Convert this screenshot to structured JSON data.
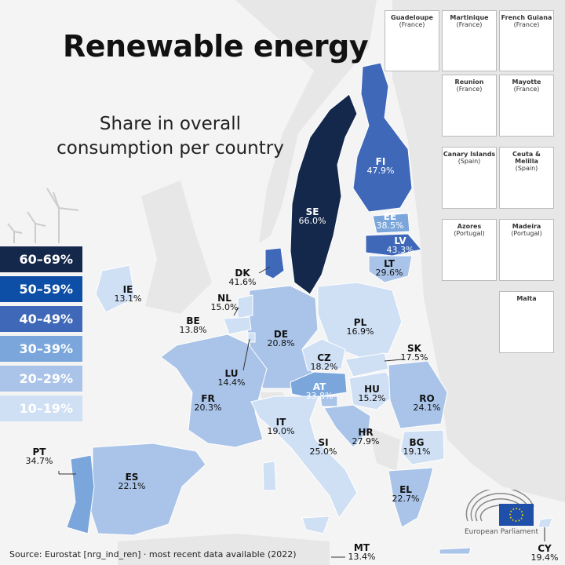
{
  "title": "Renewable energy",
  "subtitle": "Share in overall consumption per country",
  "legend": [
    {
      "label": "60–69%",
      "color": "#14284b"
    },
    {
      "label": "50–59%",
      "color": "#0d4ea6"
    },
    {
      "label": "40–49%",
      "color": "#3f68b8"
    },
    {
      "label": "30–39%",
      "color": "#7aa6dc"
    },
    {
      "label": "20–29%",
      "color": "#a9c4e8"
    },
    {
      "label": "10–19%",
      "color": "#cfdff4"
    }
  ],
  "countries": {
    "SE": {
      "code": "SE",
      "value": "66.0%"
    },
    "FI": {
      "code": "FI",
      "value": "47.9%"
    },
    "EE": {
      "code": "EE",
      "value": "38.5%"
    },
    "LV": {
      "code": "LV",
      "value": "43.3%"
    },
    "LT": {
      "code": "LT",
      "value": "29.6%"
    },
    "DK": {
      "code": "DK",
      "value": "41.6%"
    },
    "IE": {
      "code": "IE",
      "value": "13.1%"
    },
    "NL": {
      "code": "NL",
      "value": "15.0%"
    },
    "BE": {
      "code": "BE",
      "value": "13.8%"
    },
    "LU": {
      "code": "LU",
      "value": "14.4%"
    },
    "DE": {
      "code": "DE",
      "value": "20.8%"
    },
    "PL": {
      "code": "PL",
      "value": "16.9%"
    },
    "CZ": {
      "code": "CZ",
      "value": "18.2%"
    },
    "SK": {
      "code": "SK",
      "value": "17.5%"
    },
    "AT": {
      "code": "AT",
      "value": "33.8%"
    },
    "HU": {
      "code": "HU",
      "value": "15.2%"
    },
    "RO": {
      "code": "RO",
      "value": "24.1%"
    },
    "FR": {
      "code": "FR",
      "value": "20.3%"
    },
    "IT": {
      "code": "IT",
      "value": "19.0%"
    },
    "SI": {
      "code": "SI",
      "value": "25.0%"
    },
    "HR": {
      "code": "HR",
      "value": "27.9%"
    },
    "BG": {
      "code": "BG",
      "value": "19.1%"
    },
    "PT": {
      "code": "PT",
      "value": "34.7%"
    },
    "ES": {
      "code": "ES",
      "value": "22.1%"
    },
    "EL": {
      "code": "EL",
      "value": "22.7%"
    },
    "MT": {
      "code": "MT",
      "value": "13.4%"
    },
    "CY": {
      "code": "CY",
      "value": "19.4%"
    }
  },
  "insets": [
    {
      "name": "Guadeloupe",
      "country": "(France)"
    },
    {
      "name": "Martinique",
      "country": "(France)"
    },
    {
      "name": "French Guiana",
      "country": "(France)"
    },
    {
      "name": "Reunion",
      "country": "(France)"
    },
    {
      "name": "Mayotte",
      "country": "(France)"
    },
    {
      "name": "Canary Islands",
      "country": "(Spain)"
    },
    {
      "name": "Ceuta & Melilla",
      "country": "(Spain)"
    },
    {
      "name": "Azores",
      "country": "(Portugal)"
    },
    {
      "name": "Madeira",
      "country": "(Portugal)"
    },
    {
      "name": "Malta",
      "country": ""
    }
  ],
  "source": "Source: Eurostat [nrg_ind_ren] · most recent data available (2022)",
  "logo": {
    "text": "European Parliament",
    "flag_color": "#1f4fa8"
  }
}
